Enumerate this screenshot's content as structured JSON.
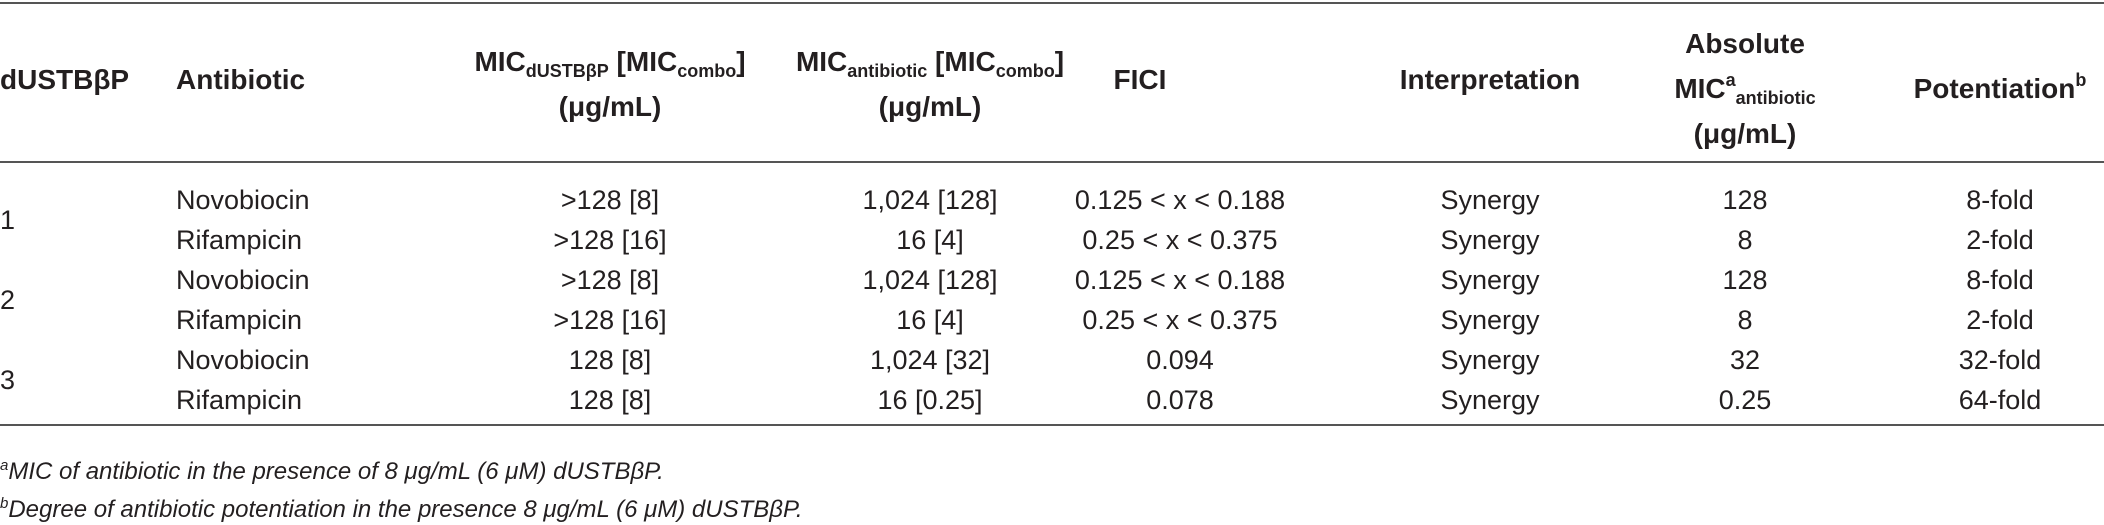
{
  "header": {
    "col1": "dUSTBβP",
    "col2": "Antibiotic",
    "col3": {
      "main": "MIC",
      "sub": "dUSTBβP",
      "mid": " [MIC",
      "sub2": "combo",
      "end": "]",
      "unit": "(μg/mL)"
    },
    "col4": {
      "main": "MIC",
      "sub": "antibiotic",
      "mid": " [MIC",
      "sub2": "combo",
      "end": "]",
      "unit": "(μg/mL)"
    },
    "col5": "FICI",
    "col6": "Interpretation",
    "col7": {
      "line1": "Absolute",
      "main": "MIC",
      "sup": "a",
      "sub": "antibiotic",
      "unit": "(μg/mL)"
    },
    "col8": {
      "main": "Potentiation",
      "sup": "b"
    }
  },
  "rows": [
    {
      "group": "1",
      "antibiotic": "Novobiocin",
      "mic_d": ">128 [8]",
      "mic_a": "1,024 [128]",
      "fici": "0.125 < x < 0.188",
      "interp": "Synergy",
      "abs": "128",
      "pot": "8-fold"
    },
    {
      "group": "",
      "antibiotic": "Rifampicin",
      "mic_d": ">128 [16]",
      "mic_a": "16 [4]",
      "fici": "0.25 < x < 0.375",
      "interp": "Synergy",
      "abs": "8",
      "pot": "2-fold"
    },
    {
      "group": "2",
      "antibiotic": "Novobiocin",
      "mic_d": ">128 [8]",
      "mic_a": "1,024 [128]",
      "fici": "0.125 < x < 0.188",
      "interp": "Synergy",
      "abs": "128",
      "pot": "8-fold"
    },
    {
      "group": "",
      "antibiotic": "Rifampicin",
      "mic_d": ">128 [16]",
      "mic_a": "16 [4]",
      "fici": "0.25 < x < 0.375",
      "interp": "Synergy",
      "abs": "8",
      "pot": "2-fold"
    },
    {
      "group": "3",
      "antibiotic": "Novobiocin",
      "mic_d": "128 [8]",
      "mic_a": "1,024 [32]",
      "fici": "0.094",
      "interp": "Synergy",
      "abs": "32",
      "pot": "32-fold"
    },
    {
      "group": "",
      "antibiotic": "Rifampicin",
      "mic_d": "128 [8]",
      "mic_a": "16 [0.25]",
      "fici": "0.078",
      "interp": "Synergy",
      "abs": "0.25",
      "pot": "64-fold"
    }
  ],
  "footnotes": [
    {
      "mark": "a",
      "text": "MIC of antibiotic in the presence of 8 μg/mL (6 μM) dUSTBβP."
    },
    {
      "mark": "b",
      "text": "Degree of antibiotic potentiation in the presence 8 μg/mL (6 μM) dUSTBβP."
    }
  ]
}
